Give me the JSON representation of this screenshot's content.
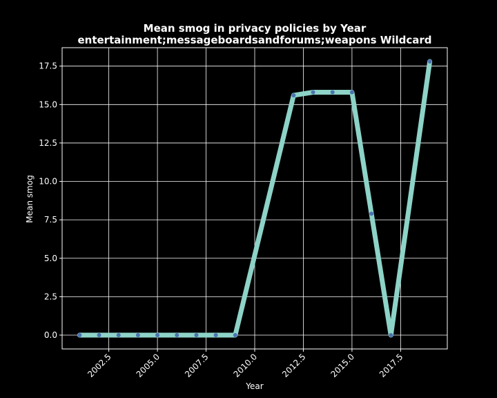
{
  "chart_data": {
    "type": "line",
    "title_line1": "Mean smog in privacy policies by Year",
    "title_line2": "entertainment;messageboardsandforums;weapons Wildcard",
    "xlabel": "Year",
    "ylabel": "Mean smog",
    "xlim": [
      2000.1,
      2019.9
    ],
    "ylim": [
      -0.9,
      18.7
    ],
    "xticks": [
      2002.5,
      2005.0,
      2007.5,
      2010.0,
      2012.5,
      2015.0,
      2017.5
    ],
    "xtick_labels": [
      "2002.5",
      "2005.0",
      "2007.5",
      "2010.0",
      "2012.5",
      "2015.0",
      "2017.5"
    ],
    "yticks": [
      0.0,
      2.5,
      5.0,
      7.5,
      10.0,
      12.5,
      15.0,
      17.5
    ],
    "ytick_labels": [
      "0.0",
      "2.5",
      "5.0",
      "7.5",
      "10.0",
      "12.5",
      "15.0",
      "17.5"
    ],
    "grid": true,
    "series": [
      {
        "x": [
          2001,
          2002,
          2003,
          2004,
          2005,
          2006,
          2007,
          2008,
          2009,
          2012,
          2013,
          2014,
          2015,
          2016,
          2017,
          2019
        ],
        "y": [
          0.0,
          0.0,
          0.0,
          0.0,
          0.0,
          0.0,
          0.0,
          0.0,
          0.0,
          15.6,
          15.8,
          15.8,
          15.8,
          7.9,
          0.0,
          17.8
        ]
      }
    ],
    "colors": {
      "line": "#8dd3c7",
      "marker": "#4c72b0",
      "grid": "#ffffff",
      "frame": "#ffffff",
      "background": "#000000"
    }
  }
}
